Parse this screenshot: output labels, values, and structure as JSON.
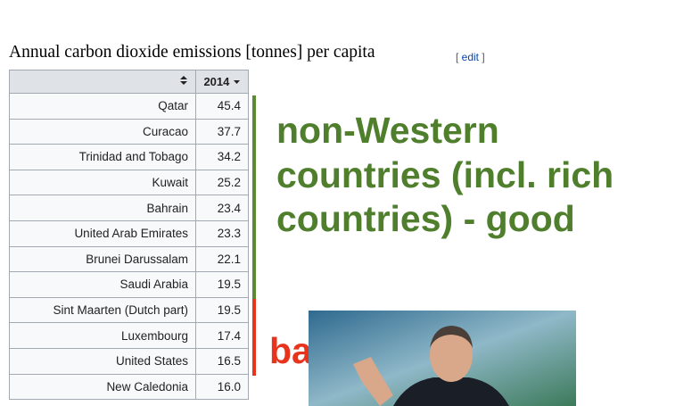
{
  "heading": {
    "title": "Annual carbon dioxide emissions [tonnes] per capita",
    "edit": "edit"
  },
  "table": {
    "header": "2014",
    "rows": [
      [
        "Qatar",
        "45.4"
      ],
      [
        "Curacao",
        "37.7"
      ],
      [
        "Trinidad and Tobago",
        "34.2"
      ],
      [
        "Kuwait",
        "25.2"
      ],
      [
        "Bahrain",
        "23.4"
      ],
      [
        "United Arab Emirates",
        "23.3"
      ],
      [
        "Brunei Darussalam",
        "22.1"
      ],
      [
        "Saudi Arabia",
        "19.5"
      ],
      [
        "Sint Maarten (Dutch part)",
        "19.5"
      ],
      [
        "Luxembourg",
        "17.4"
      ],
      [
        "United States",
        "16.5"
      ],
      [
        "New Caledonia",
        "16.0"
      ]
    ]
  },
  "annotations": {
    "good_lines": [
      "non-Western",
      "countries (incl. rich",
      "countries) - good"
    ],
    "bad": "bad"
  }
}
